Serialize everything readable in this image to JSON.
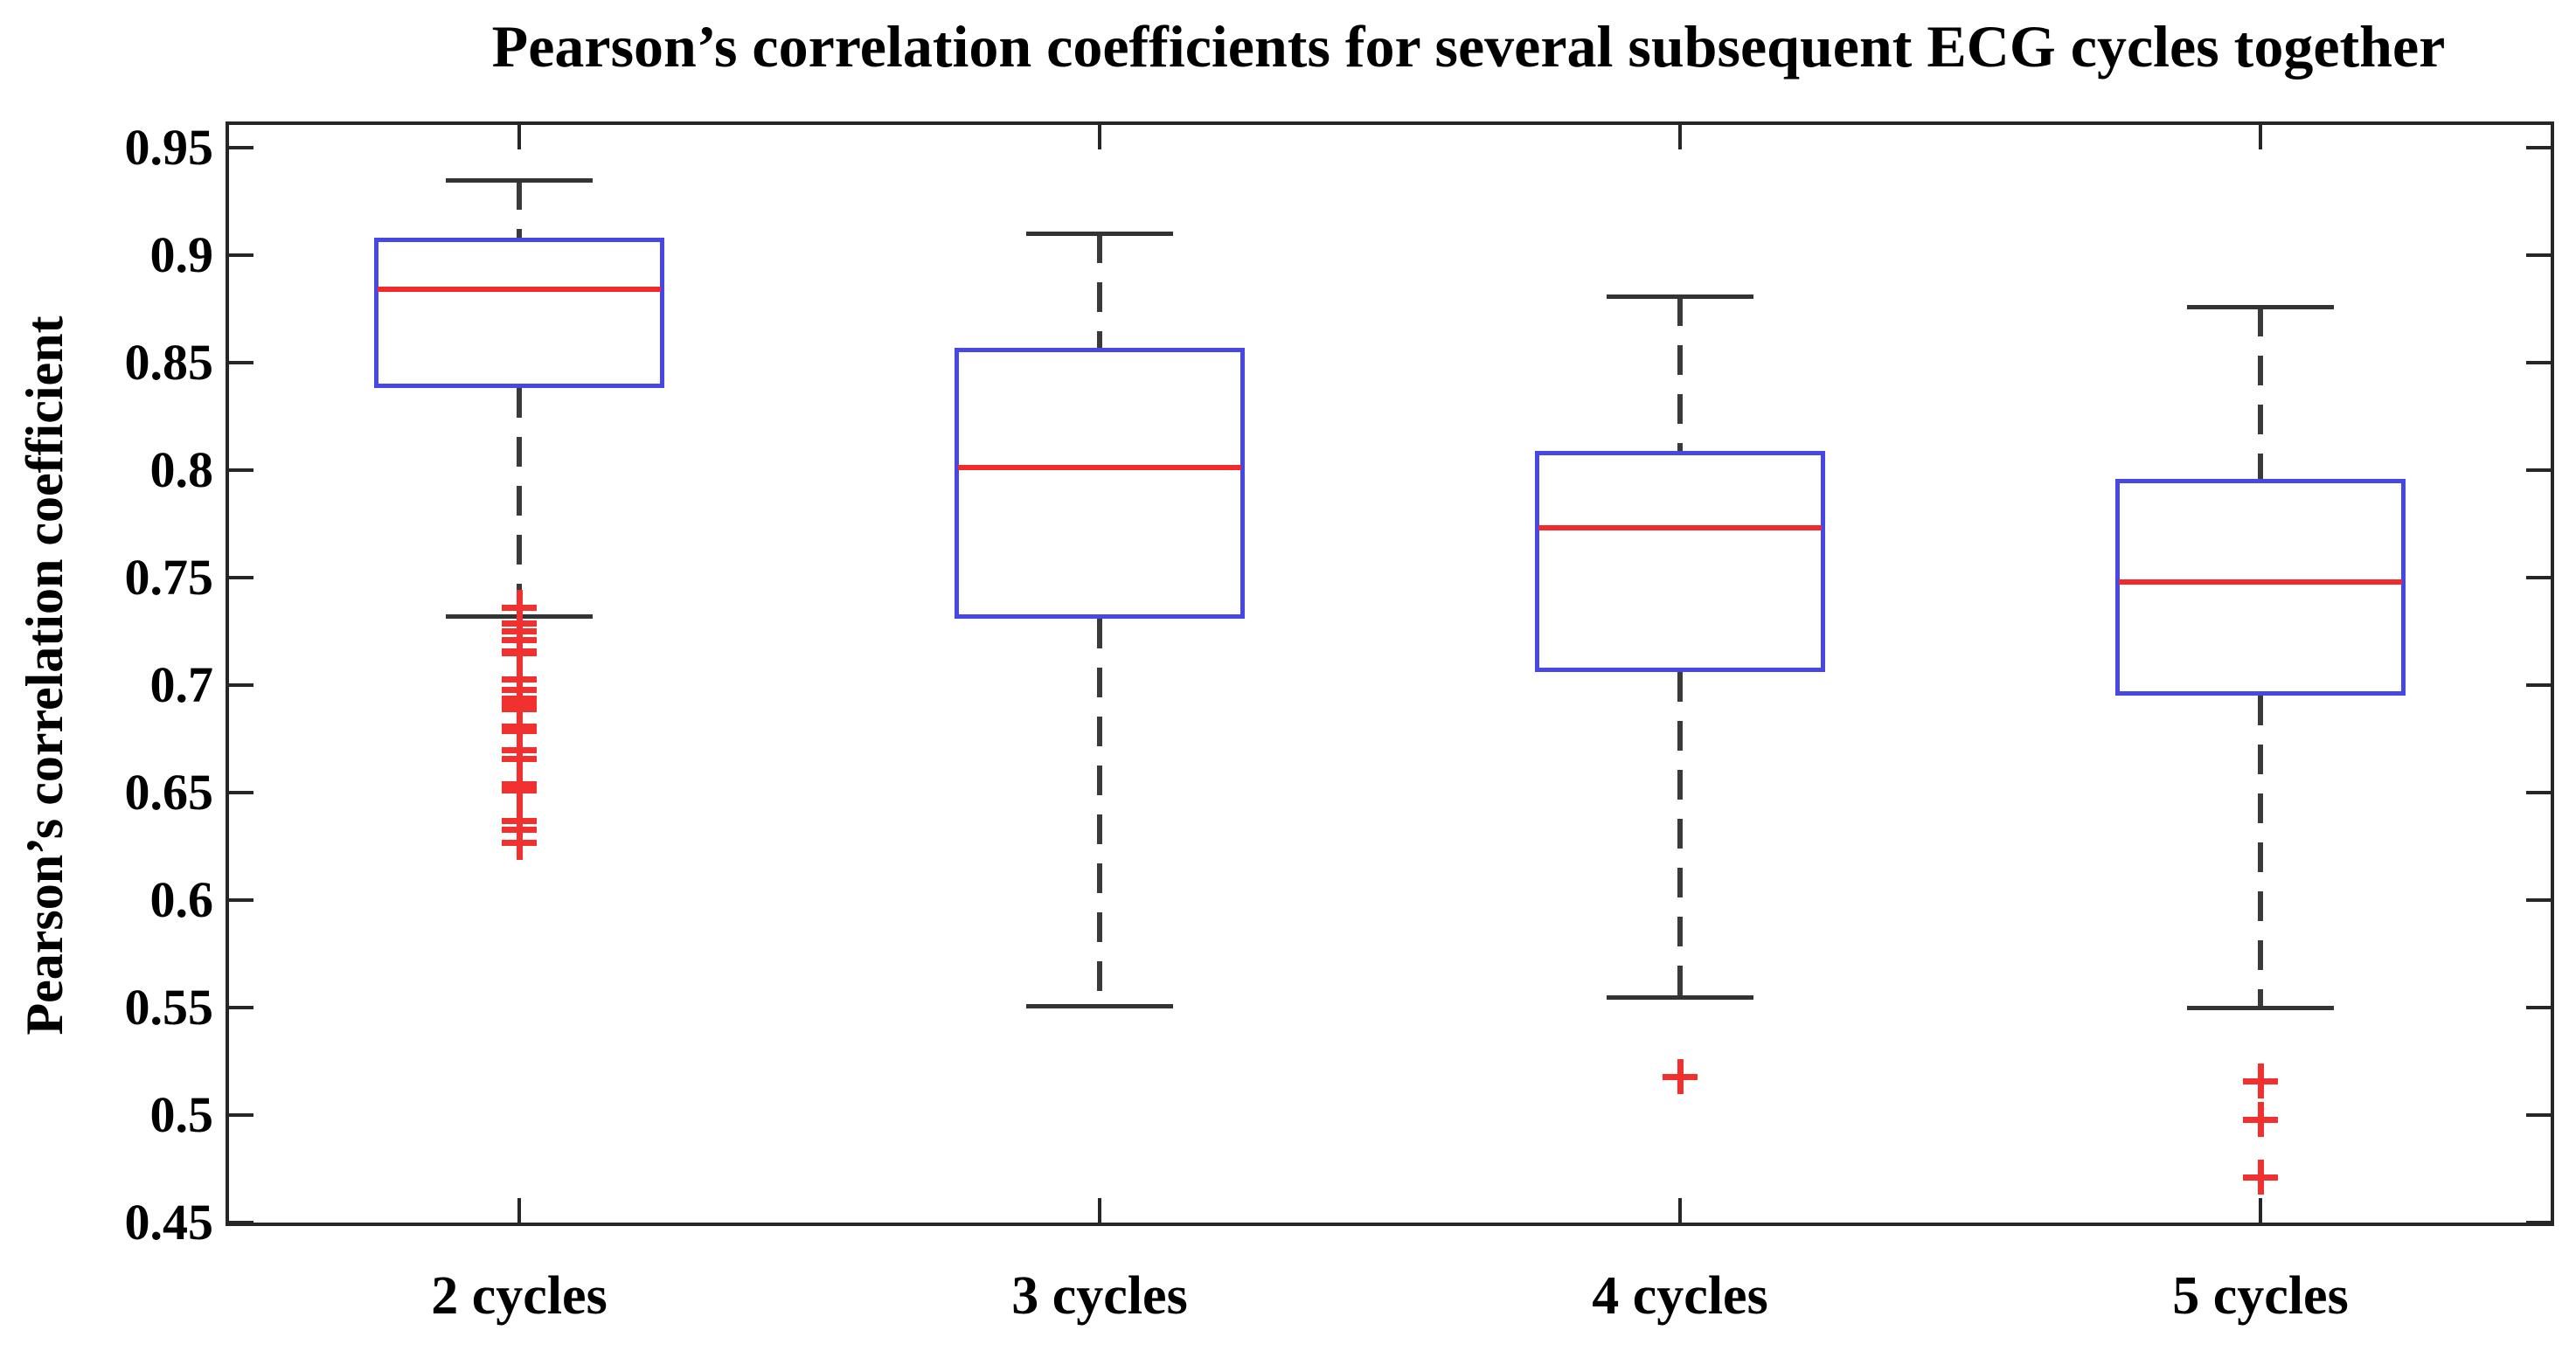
{
  "chart_data": {
    "type": "boxplot",
    "title": "Pearson’s correlation coefficients for several subsequent ECG cycles together",
    "ylabel": "Pearson’s correlation coefficient",
    "xlabel": "",
    "categories": [
      "2 cycles",
      "3 cycles",
      "4 cycles",
      "5 cycles"
    ],
    "ylim": [
      0.45,
      0.96
    ],
    "ytick_labels": [
      "0.45",
      "0.5",
      "0.55",
      "0.6",
      "0.65",
      "0.7",
      "0.75",
      "0.8",
      "0.85",
      "0.9",
      "0.95"
    ],
    "grid": false,
    "legend": null,
    "boxes": [
      {
        "category": "2 cycles",
        "whisker_high": 0.935,
        "q3": 0.908,
        "median": 0.884,
        "q1": 0.838,
        "whisker_low": 0.732,
        "outliers": [
          0.736,
          0.729,
          0.725,
          0.721,
          0.716,
          0.715,
          0.703,
          0.698,
          0.694,
          0.692,
          0.689,
          0.681,
          0.679,
          0.67,
          0.666,
          0.654,
          0.651,
          0.637,
          0.633,
          0.627
        ]
      },
      {
        "category": "3 cycles",
        "whisker_high": 0.91,
        "q3": 0.857,
        "median": 0.801,
        "q1": 0.731,
        "whisker_low": 0.551,
        "outliers": []
      },
      {
        "category": "4 cycles",
        "whisker_high": 0.881,
        "q3": 0.809,
        "median": 0.773,
        "q1": 0.706,
        "whisker_low": 0.555,
        "outliers": [
          0.518
        ]
      },
      {
        "category": "5 cycles",
        "whisker_high": 0.876,
        "q3": 0.796,
        "median": 0.748,
        "q1": 0.695,
        "whisker_low": 0.55,
        "outliers": [
          0.516,
          0.498,
          0.471
        ]
      }
    ],
    "colors": {
      "box_edge": "#4747e6",
      "median": "#f12b2b",
      "outlier": "#f13030",
      "whisker": "#3a3a3a",
      "axis": "#262626",
      "text": "#000000"
    }
  }
}
